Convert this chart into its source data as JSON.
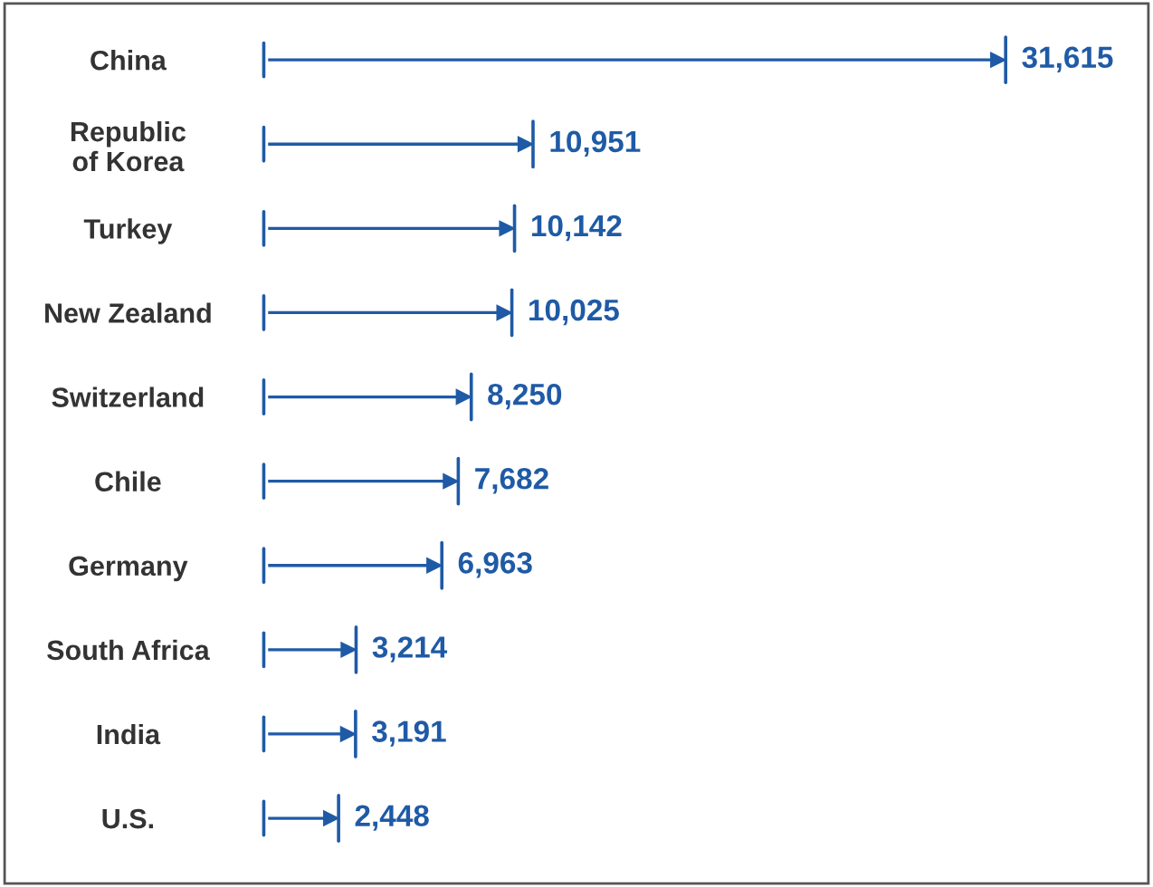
{
  "chart_data": {
    "type": "bar",
    "orientation": "horizontal",
    "data_labels": true,
    "color": "#1f5aa6",
    "categories": [
      "China",
      "Republic\nof Korea",
      "Turkey",
      "New Zealand",
      "Switzerland",
      "Chile",
      "Germany",
      "South Africa",
      "India",
      "U.S."
    ],
    "values": [
      31615,
      10951,
      10142,
      10025,
      8250,
      7682,
      6963,
      3214,
      3191,
      2448
    ],
    "value_labels": [
      "31,615",
      "10,951",
      "10,142",
      "10,025",
      "8,250",
      "7,682",
      "6,963",
      "3,214",
      "3,191",
      "2,448"
    ],
    "grid": false,
    "legend": false
  }
}
